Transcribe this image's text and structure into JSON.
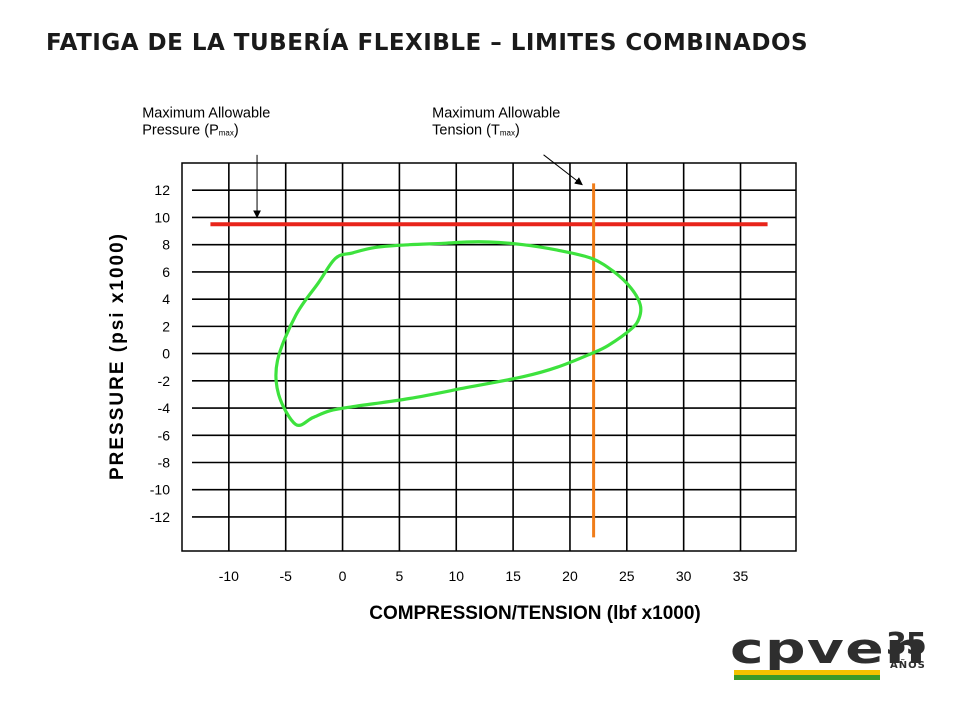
{
  "slide": {
    "title": "FATIGA DE LA TUBERÍA FLEXIBLE – LIMITES COMBINADOS"
  },
  "logo": {
    "text": "cpven",
    "years": "35",
    "subtitle": "AÑOS",
    "colors": {
      "dark": "#2e2e2e",
      "yellow": "#f2c200",
      "green": "#3a9a2a"
    }
  },
  "chart_data": {
    "type": "line",
    "xlabel": "COMPRESSION/TENSION (lbf x1000)",
    "ylabel": "PRESSURE (psi x1000)",
    "xlim": [
      -15,
      39
    ],
    "ylim": [
      -14.5,
      14
    ],
    "x_ticks": [
      -10,
      -5,
      0,
      5,
      10,
      15,
      20,
      25,
      30,
      35
    ],
    "y_ticks": [
      12,
      10,
      8,
      6,
      4,
      2,
      0,
      -2,
      -4,
      -6,
      -8,
      -10,
      -12
    ],
    "grid": true,
    "series": [
      {
        "kind": "horizontal-limit",
        "color": "#e8241a",
        "y": 9.5,
        "x_range": [
          -12.5,
          36.5
        ]
      },
      {
        "kind": "vertical-limit",
        "color": "#f07d1a",
        "x": 21.2,
        "y_range": [
          -13.5,
          12.5
        ]
      },
      {
        "kind": "envelope",
        "color": "#3de23d",
        "closed": true,
        "x": [
          0,
          2,
          5,
          8,
          10,
          12,
          15,
          18,
          21,
          23,
          24.5,
          25.3,
          25.2,
          24.5,
          22.5,
          21,
          18,
          15,
          10,
          5,
          0,
          -2,
          -3.5,
          -5,
          -6.5,
          -6.6,
          -5,
          -3,
          -1.5
        ],
        "y": [
          7.4,
          7.8,
          8.0,
          8.1,
          8.2,
          8.2,
          8.0,
          7.6,
          7.0,
          6.0,
          4.8,
          3.6,
          2.6,
          1.8,
          0.6,
          0.0,
          -1.0,
          -1.7,
          -2.5,
          -3.3,
          -3.9,
          -4.2,
          -4.7,
          -5.2,
          -3.0,
          -0.5,
          2.8,
          5.2,
          7.0
        ]
      }
    ],
    "annotations": [
      {
        "label_line1": "Maximum Allowable",
        "label_line2_prefix": "Pressure (P",
        "label_sub": "max",
        "label_suffix": ")",
        "text_x": -18.5,
        "text_y": 16.6,
        "arrow_from": [
          -8.4,
          14.6
        ],
        "arrow_to": [
          -8.4,
          10.0
        ]
      },
      {
        "label_line1": "Maximum Allowable",
        "label_line2_prefix": "Tension (T",
        "label_sub": "max",
        "label_suffix": ")",
        "text_x": 7.0,
        "text_y": 16.6,
        "arrow_from": [
          16.8,
          14.6
        ],
        "arrow_to": [
          20.2,
          12.4
        ]
      }
    ]
  }
}
